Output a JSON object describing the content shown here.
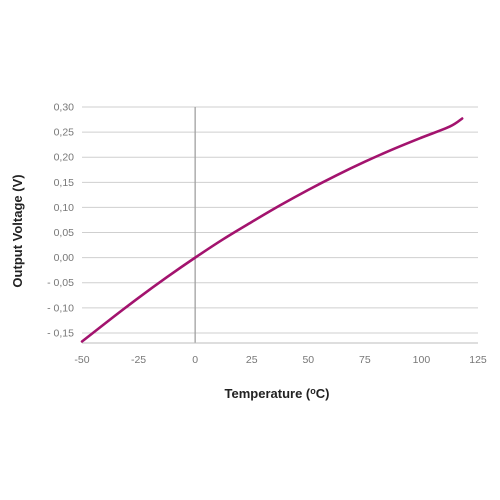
{
  "chart_data": {
    "type": "line",
    "xlabel": "Temperature (",
    "xlabel_sup": "o",
    "xlabel_unit": "C)",
    "ylabel": "Output Voltage (V)",
    "xlim": [
      -50,
      125
    ],
    "ylim": [
      -0.17,
      0.3
    ],
    "x_ticks": [
      -50,
      -25,
      0,
      25,
      50,
      75,
      100,
      125
    ],
    "x_tick_labels": [
      "-50",
      "-25",
      "0",
      "25",
      "50",
      "75",
      "100",
      "125"
    ],
    "y_ticks": [
      0.3,
      0.25,
      0.2,
      0.15,
      0.1,
      0.05,
      0.0,
      -0.05,
      -0.1,
      -0.15
    ],
    "y_tick_labels": [
      "0,30",
      "0,25",
      "0,20",
      "0,15",
      "0,10",
      "0,05",
      "0,00",
      "- 0,05",
      "- 0,10",
      "- 0,15"
    ],
    "grid": "horizontal",
    "zero_line": "vertical at x=0",
    "series": [
      {
        "color": "#a3136e",
        "x": [
          -50,
          -37.5,
          -25,
          -12.5,
          0,
          12.5,
          25,
          37.5,
          50,
          62.5,
          75,
          87.5,
          100,
          112.5,
          118
        ],
        "y": [
          -0.167,
          -0.123,
          -0.08,
          -0.039,
          0.0,
          0.037,
          0.071,
          0.104,
          0.135,
          0.164,
          0.191,
          0.216,
          0.239,
          0.261,
          0.277
        ]
      }
    ]
  }
}
